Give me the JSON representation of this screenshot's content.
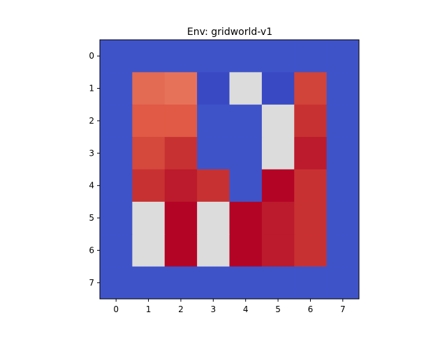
{
  "chart_data": {
    "type": "heatmap",
    "title": "Env: gridworld-v1",
    "xlabel": "",
    "ylabel": "",
    "x_ticks": [
      "0",
      "1",
      "2",
      "3",
      "4",
      "5",
      "6",
      "7"
    ],
    "y_ticks": [
      "0",
      "1",
      "2",
      "3",
      "4",
      "5",
      "6",
      "7"
    ],
    "xlim": [
      -0.5,
      7.5
    ],
    "ylim": [
      7.5,
      -0.5
    ],
    "grid": false,
    "colormap": "coolwarm",
    "vmin": 0.0,
    "vmax": 1.0,
    "cell_colors": [
      [
        "#3f53c9",
        "#3f53c9",
        "#3f53c9",
        "#3f53c9",
        "#3f53c9",
        "#3f53c9",
        "#3f53c9",
        "#3f53c9"
      ],
      [
        "#3f53c9",
        "#e36b53",
        "#e7725a",
        "#3949c4",
        "#dcdcdc",
        "#3949c4",
        "#d04439",
        "#3f53c9"
      ],
      [
        "#3f53c9",
        "#e05a45",
        "#e05a45",
        "#3f53c9",
        "#3f53c9",
        "#dcdcdc",
        "#c83132",
        "#3f53c9"
      ],
      [
        "#3f53c9",
        "#d5483c",
        "#c83132",
        "#3f53c9",
        "#3f53c9",
        "#dcdcdc",
        "#bb1b2c",
        "#3f53c9"
      ],
      [
        "#3f53c9",
        "#c83132",
        "#bb1b2c",
        "#c83132",
        "#3f53c9",
        "#b40426",
        "#c83132",
        "#3f53c9"
      ],
      [
        "#3f53c9",
        "#dcdcdc",
        "#b40426",
        "#dcdcdc",
        "#b40426",
        "#bb1b2c",
        "#c83132",
        "#3f53c9"
      ],
      [
        "#3f53c9",
        "#dcdcdc",
        "#b40426",
        "#dcdcdc",
        "#b40426",
        "#bb1b2c",
        "#c83132",
        "#3f53c9"
      ],
      [
        "#3f53c9",
        "#3f53c9",
        "#3f53c9",
        "#3f53c9",
        "#3f53c9",
        "#3f53c9",
        "#3f53c9",
        "#3f53c9"
      ]
    ]
  }
}
